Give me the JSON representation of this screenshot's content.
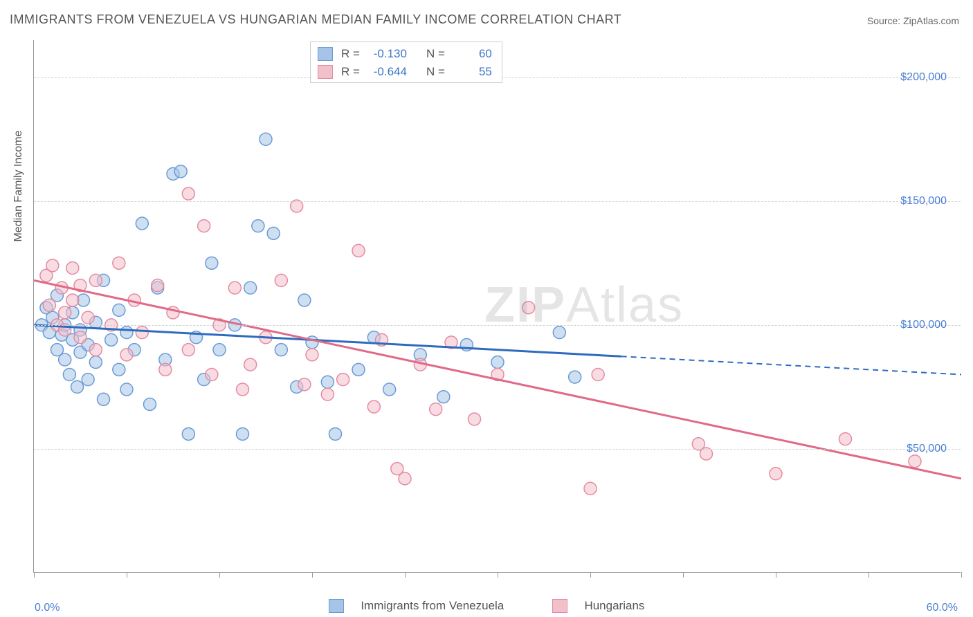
{
  "title": "IMMIGRANTS FROM VENEZUELA VS HUNGARIAN MEDIAN FAMILY INCOME CORRELATION CHART",
  "source": "Source: ZipAtlas.com",
  "watermark_bold": "ZIP",
  "watermark_light": "Atlas",
  "y_axis_title": "Median Family Income",
  "chart": {
    "type": "scatter",
    "x_min": 0.0,
    "x_max": 60.0,
    "x_min_label": "0.0%",
    "x_max_label": "60.0%",
    "y_min": 0,
    "y_max": 215000,
    "y_ticks": [
      50000,
      100000,
      150000,
      200000
    ],
    "y_tick_labels": [
      "$50,000",
      "$100,000",
      "$150,000",
      "$200,000"
    ],
    "x_tick_positions": [
      0,
      6,
      12,
      18,
      24,
      30,
      36,
      42,
      48,
      54,
      60
    ],
    "grid_color": "#d0d0d0",
    "background_color": "#ffffff",
    "marker_radius": 9,
    "marker_opacity": 0.55,
    "series": [
      {
        "name": "Immigrants from Venezuela",
        "legend_label": "Immigrants from Venezuela",
        "color_fill": "#a6c4e8",
        "color_stroke": "#6b9bd6",
        "r_value": "-0.130",
        "n_value": "60",
        "regression": {
          "y_at_xmin": 100000,
          "y_at_xmax": 80000,
          "solid_until_x": 38,
          "line_color": "#2e6bc0",
          "line_width": 3
        },
        "points": [
          [
            0.5,
            100000
          ],
          [
            0.8,
            107000
          ],
          [
            1.0,
            97000
          ],
          [
            1.2,
            103000
          ],
          [
            1.5,
            90000
          ],
          [
            1.5,
            112000
          ],
          [
            1.8,
            96000
          ],
          [
            2.0,
            86000
          ],
          [
            2.0,
            100000
          ],
          [
            2.3,
            80000
          ],
          [
            2.5,
            94000
          ],
          [
            2.5,
            105000
          ],
          [
            2.8,
            75000
          ],
          [
            3.0,
            89000
          ],
          [
            3.0,
            98000
          ],
          [
            3.2,
            110000
          ],
          [
            3.5,
            92000
          ],
          [
            3.5,
            78000
          ],
          [
            4.0,
            85000
          ],
          [
            4.0,
            101000
          ],
          [
            4.5,
            70000
          ],
          [
            4.5,
            118000
          ],
          [
            5.0,
            94000
          ],
          [
            5.5,
            82000
          ],
          [
            5.5,
            106000
          ],
          [
            6.0,
            74000
          ],
          [
            6.0,
            97000
          ],
          [
            6.5,
            90000
          ],
          [
            7.0,
            141000
          ],
          [
            7.5,
            68000
          ],
          [
            8.0,
            115000
          ],
          [
            8.5,
            86000
          ],
          [
            9.0,
            161000
          ],
          [
            9.5,
            162000
          ],
          [
            10.0,
            56000
          ],
          [
            10.5,
            95000
          ],
          [
            11.0,
            78000
          ],
          [
            11.5,
            125000
          ],
          [
            12.0,
            90000
          ],
          [
            13.0,
            100000
          ],
          [
            13.5,
            56000
          ],
          [
            14.0,
            115000
          ],
          [
            14.5,
            140000
          ],
          [
            15.0,
            175000
          ],
          [
            15.5,
            137000
          ],
          [
            16.0,
            90000
          ],
          [
            17.0,
            75000
          ],
          [
            17.5,
            110000
          ],
          [
            18.0,
            93000
          ],
          [
            19.0,
            77000
          ],
          [
            19.5,
            56000
          ],
          [
            21.0,
            82000
          ],
          [
            22.0,
            95000
          ],
          [
            23.0,
            74000
          ],
          [
            25.0,
            88000
          ],
          [
            26.5,
            71000
          ],
          [
            28.0,
            92000
          ],
          [
            30.0,
            85000
          ],
          [
            34.0,
            97000
          ],
          [
            35.0,
            79000
          ]
        ]
      },
      {
        "name": "Hungarians",
        "legend_label": "Hungarians",
        "color_fill": "#f2c0cb",
        "color_stroke": "#e48ba2",
        "r_value": "-0.644",
        "n_value": "55",
        "regression": {
          "y_at_xmin": 118000,
          "y_at_xmax": 38000,
          "solid_until_x": 60,
          "line_color": "#e06a87",
          "line_width": 3
        },
        "points": [
          [
            0.8,
            120000
          ],
          [
            1.0,
            108000
          ],
          [
            1.2,
            124000
          ],
          [
            1.5,
            100000
          ],
          [
            1.8,
            115000
          ],
          [
            2.0,
            105000
          ],
          [
            2.0,
            98000
          ],
          [
            2.5,
            123000
          ],
          [
            2.5,
            110000
          ],
          [
            3.0,
            95000
          ],
          [
            3.0,
            116000
          ],
          [
            3.5,
            103000
          ],
          [
            4.0,
            90000
          ],
          [
            4.0,
            118000
          ],
          [
            5.0,
            100000
          ],
          [
            5.5,
            125000
          ],
          [
            6.0,
            88000
          ],
          [
            6.5,
            110000
          ],
          [
            7.0,
            97000
          ],
          [
            8.0,
            116000
          ],
          [
            8.5,
            82000
          ],
          [
            9.0,
            105000
          ],
          [
            10.0,
            153000
          ],
          [
            10.0,
            90000
          ],
          [
            11.0,
            140000
          ],
          [
            11.5,
            80000
          ],
          [
            12.0,
            100000
          ],
          [
            13.0,
            115000
          ],
          [
            13.5,
            74000
          ],
          [
            14.0,
            84000
          ],
          [
            15.0,
            95000
          ],
          [
            16.0,
            118000
          ],
          [
            17.0,
            148000
          ],
          [
            17.5,
            76000
          ],
          [
            18.0,
            88000
          ],
          [
            19.0,
            72000
          ],
          [
            20.0,
            78000
          ],
          [
            21.0,
            130000
          ],
          [
            22.0,
            67000
          ],
          [
            22.5,
            94000
          ],
          [
            23.5,
            42000
          ],
          [
            24.0,
            38000
          ],
          [
            25.0,
            84000
          ],
          [
            26.0,
            66000
          ],
          [
            27.0,
            93000
          ],
          [
            28.5,
            62000
          ],
          [
            30.0,
            80000
          ],
          [
            32.0,
            107000
          ],
          [
            36.0,
            34000
          ],
          [
            36.5,
            80000
          ],
          [
            43.0,
            52000
          ],
          [
            43.5,
            48000
          ],
          [
            52.5,
            54000
          ],
          [
            57.0,
            45000
          ],
          [
            48.0,
            40000
          ]
        ]
      }
    ]
  },
  "legendTop": {
    "r_label": "R =",
    "n_label": "N ="
  }
}
